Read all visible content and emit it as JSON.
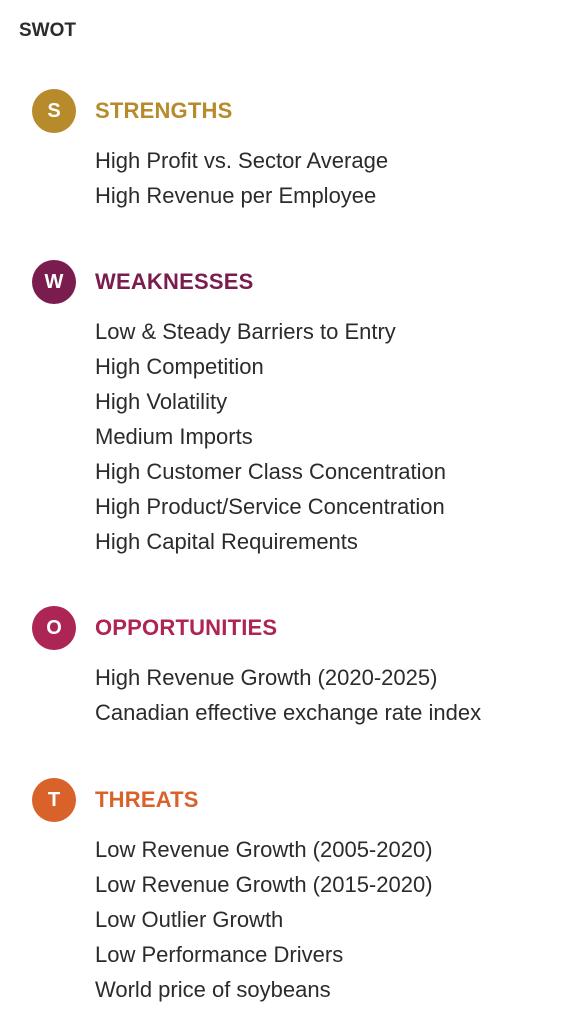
{
  "title": "SWOT",
  "sections": [
    {
      "letter": "S",
      "title": "STRENGTHS",
      "color": "#b78a2c",
      "items": [
        "High Profit vs. Sector Average",
        "High Revenue per Employee"
      ]
    },
    {
      "letter": "W",
      "title": "WEAKNESSES",
      "color": "#7b1c4f",
      "items": [
        "Low & Steady Barriers to Entry",
        "High Competition",
        "High Volatility",
        "Medium Imports",
        "High Customer Class Concentration",
        "High Product/Service Concentration",
        "High Capital Requirements"
      ]
    },
    {
      "letter": "O",
      "title": "OPPORTUNITIES",
      "color": "#ad2554",
      "items": [
        "High Revenue Growth (2020-2025)",
        "Canadian effective exchange rate index"
      ]
    },
    {
      "letter": "T",
      "title": "THREATS",
      "color": "#d9622b",
      "items": [
        "Low Revenue Growth (2005-2020)",
        "Low Revenue Growth (2015-2020)",
        "Low Outlier Growth",
        "Low Performance Drivers",
        "World price of soybeans"
      ]
    }
  ]
}
